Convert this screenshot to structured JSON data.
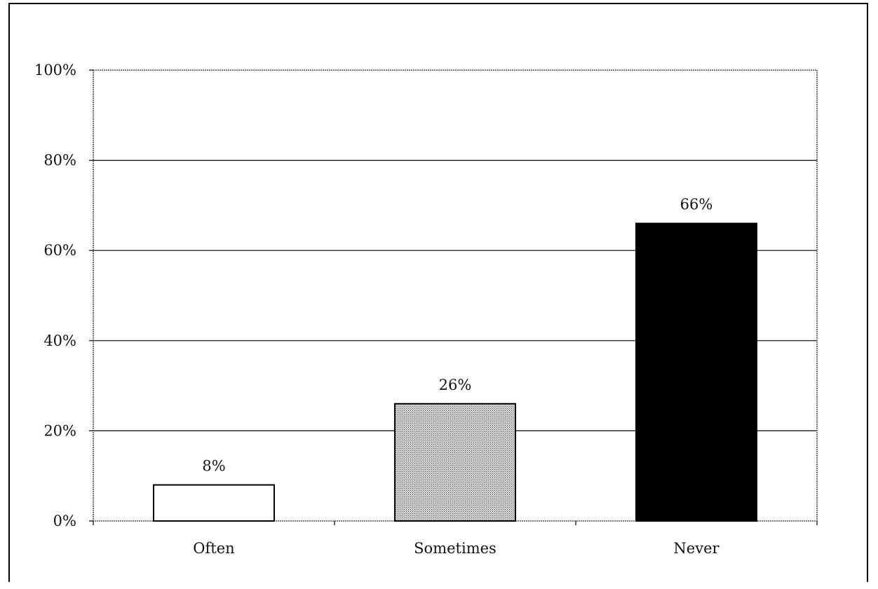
{
  "chart_data": {
    "type": "bar",
    "title": "",
    "xlabel": "",
    "ylabel": "",
    "categories": [
      "Often",
      "Sometimes",
      "Never"
    ],
    "values": [
      8,
      26,
      66
    ],
    "data_labels": [
      "8%",
      "26%",
      "66%"
    ],
    "ylim": [
      0,
      100
    ],
    "yticks": [
      0,
      20,
      40,
      60,
      80,
      100
    ],
    "ytick_labels": [
      "0%",
      "20%",
      "40%",
      "60%",
      "80%",
      "100%"
    ],
    "grid": true,
    "legend": "none",
    "bar_fills": [
      "#ffffff",
      "#bdbdbd",
      "#000000"
    ]
  }
}
